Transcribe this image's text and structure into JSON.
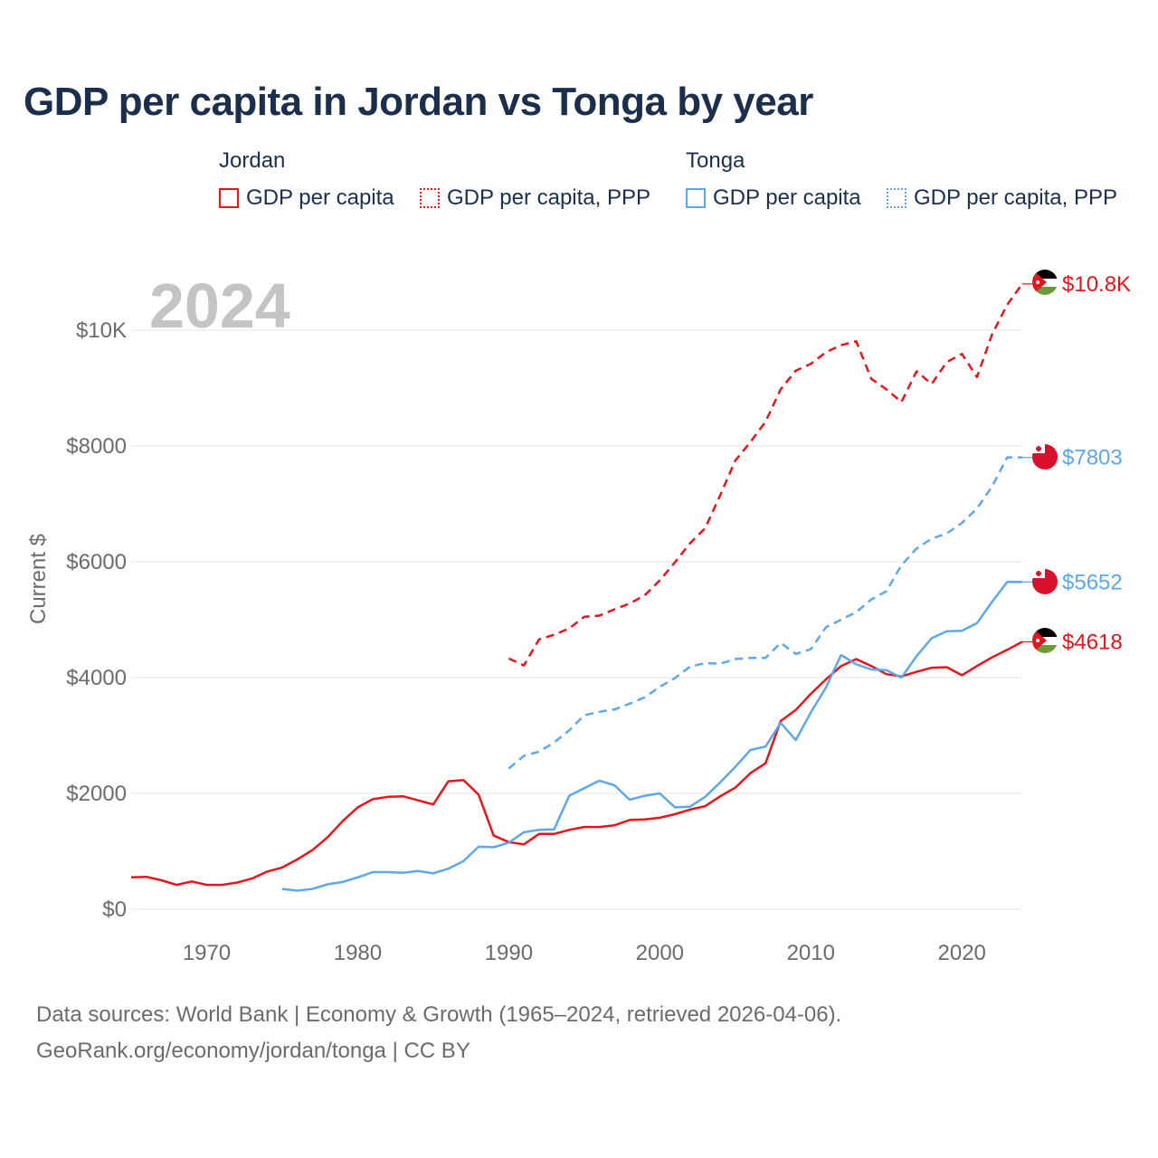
{
  "title": "GDP per capita in Jordan vs Tonga by year",
  "legend": {
    "groups": [
      {
        "name": "Jordan",
        "items": [
          "GDP per capita",
          "GDP per capita, PPP"
        ]
      },
      {
        "name": "Tonga",
        "items": [
          "GDP per capita",
          "GDP per capita, PPP"
        ]
      }
    ]
  },
  "colors": {
    "jordan": "#e8141c",
    "tonga": "#5ea7e8",
    "text": "#1b2f4d",
    "axis": "#6b6b6b",
    "year": "#c4c4c4"
  },
  "year_label": "2024",
  "footer": {
    "line1": "Data sources: World Bank | Economy & Growth (1965–2024, retrieved 2026-04-06).",
    "line2": "GeoRank.org/economy/jordan/tonga | CC BY"
  },
  "chart_data": {
    "type": "line",
    "title": "GDP per capita in Jordan vs Tonga by year",
    "xlabel": "",
    "ylabel": "Current $",
    "xlim": [
      1965,
      2024
    ],
    "ylim": [
      0,
      11000
    ],
    "x_ticks": [
      1970,
      1980,
      1990,
      2000,
      2010,
      2020
    ],
    "y_ticks": [
      0,
      2000,
      4000,
      6000,
      8000,
      10000
    ],
    "y_tick_labels": [
      "$0",
      "$2000",
      "$4000",
      "$6000",
      "$8000",
      "$10K"
    ],
    "grid": true,
    "series": [
      {
        "name": "Jordan GDP per capita",
        "country": "Jordan",
        "style": "solid",
        "end_label": "$4618",
        "x": [
          1965,
          1966,
          1967,
          1968,
          1969,
          1970,
          1971,
          1972,
          1973,
          1974,
          1975,
          1976,
          1977,
          1978,
          1979,
          1980,
          1981,
          1982,
          1983,
          1984,
          1985,
          1986,
          1987,
          1988,
          1989,
          1990,
          1991,
          1992,
          1993,
          1994,
          1995,
          1996,
          1997,
          1998,
          1999,
          2000,
          2001,
          2002,
          2003,
          2004,
          2005,
          2006,
          2007,
          2008,
          2009,
          2010,
          2011,
          2012,
          2013,
          2014,
          2015,
          2016,
          2017,
          2018,
          2019,
          2020,
          2021,
          2022,
          2023,
          2024
        ],
        "values": [
          550,
          560,
          500,
          420,
          480,
          420,
          420,
          460,
          530,
          650,
          720,
          860,
          1020,
          1240,
          1520,
          1760,
          1900,
          1940,
          1950,
          1880,
          1810,
          2210,
          2230,
          1980,
          1270,
          1160,
          1120,
          1300,
          1300,
          1370,
          1420,
          1420,
          1450,
          1540,
          1550,
          1580,
          1640,
          1720,
          1780,
          1950,
          2100,
          2350,
          2520,
          3250,
          3440,
          3720,
          3970,
          4200,
          4320,
          4200,
          4060,
          4020,
          4100,
          4170,
          4180,
          4040,
          4200,
          4350,
          4480,
          4618
        ]
      },
      {
        "name": "Jordan GDP per capita, PPP",
        "country": "Jordan",
        "style": "dashed",
        "end_label": "$10.8K",
        "x": [
          1990,
          1991,
          1992,
          1993,
          1994,
          1995,
          1996,
          1997,
          1998,
          1999,
          2000,
          2001,
          2002,
          2003,
          2004,
          2005,
          2006,
          2007,
          2008,
          2009,
          2010,
          2011,
          2012,
          2013,
          2014,
          2015,
          2016,
          2017,
          2018,
          2019,
          2020,
          2021,
          2022,
          2023,
          2024
        ],
        "values": [
          4330,
          4210,
          4660,
          4740,
          4850,
          5050,
          5070,
          5180,
          5280,
          5420,
          5680,
          5990,
          6320,
          6580,
          7150,
          7750,
          8070,
          8420,
          8980,
          9300,
          9420,
          9620,
          9740,
          9810,
          9160,
          8980,
          8760,
          9290,
          9070,
          9450,
          9590,
          9190,
          9930,
          10440,
          10800
        ]
      },
      {
        "name": "Tonga GDP per capita",
        "country": "Tonga",
        "style": "solid",
        "end_label": "$5652",
        "x": [
          1975,
          1976,
          1977,
          1978,
          1979,
          1980,
          1981,
          1982,
          1983,
          1984,
          1985,
          1986,
          1987,
          1988,
          1989,
          1990,
          1991,
          1992,
          1993,
          1994,
          1995,
          1996,
          1997,
          1998,
          1999,
          2000,
          2001,
          2002,
          2003,
          2004,
          2005,
          2006,
          2007,
          2008,
          2009,
          2010,
          2011,
          2012,
          2013,
          2014,
          2015,
          2016,
          2017,
          2018,
          2019,
          2020,
          2021,
          2022,
          2023,
          2024
        ],
        "values": [
          350,
          320,
          350,
          430,
          470,
          550,
          640,
          640,
          630,
          660,
          620,
          700,
          830,
          1080,
          1070,
          1150,
          1330,
          1370,
          1380,
          1960,
          2090,
          2220,
          2140,
          1890,
          1960,
          2000,
          1760,
          1770,
          1940,
          2190,
          2460,
          2750,
          2810,
          3220,
          2920,
          3400,
          3830,
          4390,
          4230,
          4140,
          4130,
          4000,
          4370,
          4680,
          4800,
          4810,
          4940,
          5310,
          5652,
          5652
        ]
      },
      {
        "name": "Tonga GDP per capita, PPP",
        "country": "Tonga",
        "style": "dashed",
        "end_label": "$7803",
        "x": [
          1990,
          1991,
          1992,
          1993,
          1994,
          1995,
          1996,
          1997,
          1998,
          1999,
          2000,
          2001,
          2002,
          2003,
          2004,
          2005,
          2006,
          2007,
          2008,
          2009,
          2010,
          2011,
          2012,
          2013,
          2014,
          2015,
          2016,
          2017,
          2018,
          2019,
          2020,
          2021,
          2022,
          2023,
          2024
        ],
        "values": [
          2430,
          2650,
          2720,
          2880,
          3090,
          3350,
          3410,
          3450,
          3550,
          3660,
          3840,
          3990,
          4190,
          4250,
          4240,
          4320,
          4340,
          4340,
          4600,
          4410,
          4490,
          4870,
          5000,
          5130,
          5350,
          5490,
          5940,
          6230,
          6400,
          6490,
          6670,
          6920,
          7300,
          7803,
          7803
        ]
      }
    ]
  }
}
